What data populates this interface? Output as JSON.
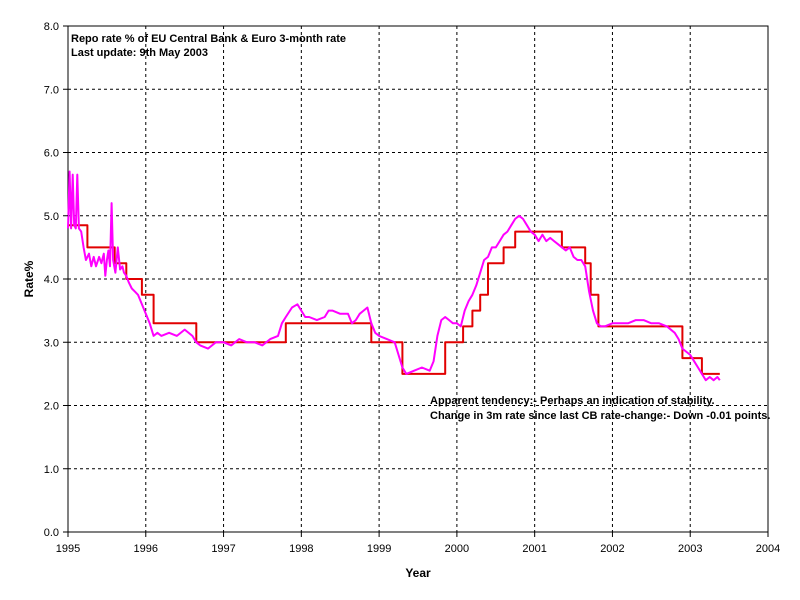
{
  "chart_data": {
    "type": "line",
    "title_lines": [
      "Repo rate % of EU Central Bank & Euro 3-month rate",
      "Last update:  9th May 2003"
    ],
    "xlabel": "Year",
    "ylabel": "Rate%",
    "xlim": [
      1995,
      2004
    ],
    "ylim": [
      0,
      8
    ],
    "x_ticks": [
      "1995",
      "1996",
      "1997",
      "1998",
      "1999",
      "2000",
      "2001",
      "2002",
      "2003",
      "2004"
    ],
    "y_ticks": [
      "0.0",
      "1.0",
      "2.0",
      "3.0",
      "4.0",
      "5.0",
      "6.0",
      "7.0",
      "8.0"
    ],
    "grid": true,
    "annotations": [
      "Apparent tendency:-   Perhaps an indication of stability.",
      "Change in 3m rate since last CB rate-change:-  Down -0.01 points."
    ],
    "series": [
      {
        "color": "#e10000",
        "step": true,
        "points": [
          [
            1995.0,
            4.85
          ],
          [
            1995.25,
            4.5
          ],
          [
            1995.6,
            4.25
          ],
          [
            1995.75,
            4.0
          ],
          [
            1995.95,
            3.75
          ],
          [
            1996.1,
            3.3
          ],
          [
            1996.65,
            3.0
          ],
          [
            1997.8,
            3.3
          ],
          [
            1998.9,
            3.0
          ],
          [
            1999.3,
            2.5
          ],
          [
            1999.85,
            3.0
          ],
          [
            2000.08,
            3.25
          ],
          [
            2000.2,
            3.5
          ],
          [
            2000.3,
            3.75
          ],
          [
            2000.4,
            4.25
          ],
          [
            2000.6,
            4.5
          ],
          [
            2000.75,
            4.75
          ],
          [
            2001.35,
            4.5
          ],
          [
            2001.65,
            4.25
          ],
          [
            2001.72,
            3.75
          ],
          [
            2001.82,
            3.25
          ],
          [
            2002.9,
            2.75
          ],
          [
            2003.15,
            2.5
          ],
          [
            2003.38,
            2.5
          ]
        ]
      },
      {
        "color": "#ff00ff",
        "step": false,
        "points": [
          [
            1995.0,
            4.8
          ],
          [
            1995.02,
            5.7
          ],
          [
            1995.04,
            4.8
          ],
          [
            1995.06,
            5.65
          ],
          [
            1995.08,
            4.85
          ],
          [
            1995.1,
            4.8
          ],
          [
            1995.12,
            5.65
          ],
          [
            1995.14,
            4.8
          ],
          [
            1995.17,
            4.75
          ],
          [
            1995.2,
            4.5
          ],
          [
            1995.23,
            4.3
          ],
          [
            1995.27,
            4.4
          ],
          [
            1995.3,
            4.2
          ],
          [
            1995.33,
            4.35
          ],
          [
            1995.36,
            4.2
          ],
          [
            1995.4,
            4.35
          ],
          [
            1995.43,
            4.25
          ],
          [
            1995.46,
            4.4
          ],
          [
            1995.48,
            4.05
          ],
          [
            1995.5,
            4.3
          ],
          [
            1995.52,
            4.45
          ],
          [
            1995.54,
            4.2
          ],
          [
            1995.56,
            5.2
          ],
          [
            1995.58,
            4.3
          ],
          [
            1995.61,
            4.1
          ],
          [
            1995.64,
            4.5
          ],
          [
            1995.67,
            4.15
          ],
          [
            1995.7,
            4.2
          ],
          [
            1995.72,
            4.1
          ],
          [
            1995.75,
            4.05
          ],
          [
            1995.78,
            3.95
          ],
          [
            1995.82,
            3.85
          ],
          [
            1995.86,
            3.8
          ],
          [
            1995.9,
            3.75
          ],
          [
            1995.95,
            3.6
          ],
          [
            1996.0,
            3.45
          ],
          [
            1996.05,
            3.3
          ],
          [
            1996.1,
            3.1
          ],
          [
            1996.15,
            3.15
          ],
          [
            1996.2,
            3.1
          ],
          [
            1996.3,
            3.15
          ],
          [
            1996.4,
            3.1
          ],
          [
            1996.5,
            3.2
          ],
          [
            1996.6,
            3.1
          ],
          [
            1996.65,
            3.0
          ],
          [
            1996.7,
            2.95
          ],
          [
            1996.8,
            2.9
          ],
          [
            1996.9,
            3.0
          ],
          [
            1997.0,
            3.0
          ],
          [
            1997.1,
            2.95
          ],
          [
            1997.2,
            3.05
          ],
          [
            1997.3,
            3.0
          ],
          [
            1997.4,
            3.0
          ],
          [
            1997.5,
            2.95
          ],
          [
            1997.6,
            3.05
          ],
          [
            1997.7,
            3.1
          ],
          [
            1997.75,
            3.3
          ],
          [
            1997.8,
            3.4
          ],
          [
            1997.88,
            3.55
          ],
          [
            1997.95,
            3.6
          ],
          [
            1998.0,
            3.5
          ],
          [
            1998.05,
            3.4
          ],
          [
            1998.1,
            3.4
          ],
          [
            1998.2,
            3.35
          ],
          [
            1998.3,
            3.4
          ],
          [
            1998.35,
            3.5
          ],
          [
            1998.4,
            3.5
          ],
          [
            1998.5,
            3.45
          ],
          [
            1998.6,
            3.45
          ],
          [
            1998.65,
            3.3
          ],
          [
            1998.7,
            3.35
          ],
          [
            1998.75,
            3.45
          ],
          [
            1998.8,
            3.5
          ],
          [
            1998.85,
            3.55
          ],
          [
            1998.9,
            3.3
          ],
          [
            1998.95,
            3.15
          ],
          [
            1999.0,
            3.1
          ],
          [
            1999.1,
            3.05
          ],
          [
            1999.2,
            3.0
          ],
          [
            1999.3,
            2.6
          ],
          [
            1999.35,
            2.5
          ],
          [
            1999.45,
            2.55
          ],
          [
            1999.55,
            2.6
          ],
          [
            1999.65,
            2.55
          ],
          [
            1999.7,
            2.7
          ],
          [
            1999.75,
            3.1
          ],
          [
            1999.8,
            3.35
          ],
          [
            1999.85,
            3.4
          ],
          [
            1999.9,
            3.35
          ],
          [
            1999.95,
            3.3
          ],
          [
            2000.0,
            3.3
          ],
          [
            2000.05,
            3.25
          ],
          [
            2000.1,
            3.5
          ],
          [
            2000.15,
            3.65
          ],
          [
            2000.2,
            3.75
          ],
          [
            2000.25,
            3.9
          ],
          [
            2000.3,
            4.1
          ],
          [
            2000.35,
            4.3
          ],
          [
            2000.4,
            4.35
          ],
          [
            2000.45,
            4.5
          ],
          [
            2000.5,
            4.5
          ],
          [
            2000.55,
            4.6
          ],
          [
            2000.6,
            4.7
          ],
          [
            2000.65,
            4.75
          ],
          [
            2000.7,
            4.85
          ],
          [
            2000.75,
            4.95
          ],
          [
            2000.8,
            5.0
          ],
          [
            2000.85,
            4.95
          ],
          [
            2000.9,
            4.85
          ],
          [
            2000.95,
            4.75
          ],
          [
            2001.0,
            4.7
          ],
          [
            2001.05,
            4.6
          ],
          [
            2001.1,
            4.7
          ],
          [
            2001.15,
            4.6
          ],
          [
            2001.2,
            4.65
          ],
          [
            2001.25,
            4.6
          ],
          [
            2001.3,
            4.55
          ],
          [
            2001.35,
            4.5
          ],
          [
            2001.4,
            4.45
          ],
          [
            2001.45,
            4.5
          ],
          [
            2001.5,
            4.35
          ],
          [
            2001.55,
            4.3
          ],
          [
            2001.6,
            4.3
          ],
          [
            2001.65,
            4.2
          ],
          [
            2001.7,
            3.8
          ],
          [
            2001.75,
            3.5
          ],
          [
            2001.8,
            3.3
          ],
          [
            2001.85,
            3.25
          ],
          [
            2001.9,
            3.25
          ],
          [
            2002.0,
            3.3
          ],
          [
            2002.1,
            3.3
          ],
          [
            2002.2,
            3.3
          ],
          [
            2002.3,
            3.35
          ],
          [
            2002.4,
            3.35
          ],
          [
            2002.5,
            3.3
          ],
          [
            2002.6,
            3.3
          ],
          [
            2002.7,
            3.25
          ],
          [
            2002.8,
            3.15
          ],
          [
            2002.85,
            3.05
          ],
          [
            2002.9,
            2.9
          ],
          [
            2003.0,
            2.8
          ],
          [
            2003.05,
            2.7
          ],
          [
            2003.1,
            2.6
          ],
          [
            2003.15,
            2.5
          ],
          [
            2003.2,
            2.4
          ],
          [
            2003.25,
            2.45
          ],
          [
            2003.3,
            2.4
          ],
          [
            2003.35,
            2.45
          ],
          [
            2003.38,
            2.4
          ]
        ]
      }
    ]
  }
}
